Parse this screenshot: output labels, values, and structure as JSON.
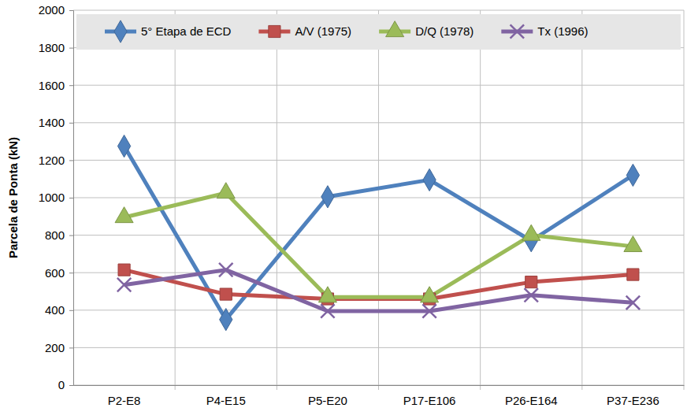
{
  "chart_data": {
    "type": "line",
    "y_label": "Parcela de Ponta (kN)",
    "categories": [
      "P2-E8",
      "P4-E15",
      "P5-E20",
      "P17-E106",
      "P26-E164",
      "P37-E236"
    ],
    "series": [
      {
        "name": "5° Etapa de ECD",
        "color": "#4f81bd",
        "marker": "diamond",
        "values": [
          1275,
          350,
          1005,
          1095,
          770,
          1120
        ]
      },
      {
        "name": "A/V (1975)",
        "color": "#c0504d",
        "marker": "square",
        "values": [
          615,
          485,
          460,
          460,
          550,
          590
        ]
      },
      {
        "name": "D/Q (1978)",
        "color": "#9bbb59",
        "marker": "triangle",
        "values": [
          895,
          1025,
          470,
          470,
          800,
          740
        ]
      },
      {
        "name": "Tx (1996)",
        "color": "#8064a2",
        "marker": "x",
        "values": [
          535,
          615,
          395,
          395,
          480,
          440
        ]
      }
    ],
    "ylim": [
      0,
      2000
    ],
    "yticks": [
      0,
      200,
      400,
      600,
      800,
      1000,
      1200,
      1400,
      1600,
      1800,
      2000
    ],
    "grid": true,
    "legend": "top"
  }
}
